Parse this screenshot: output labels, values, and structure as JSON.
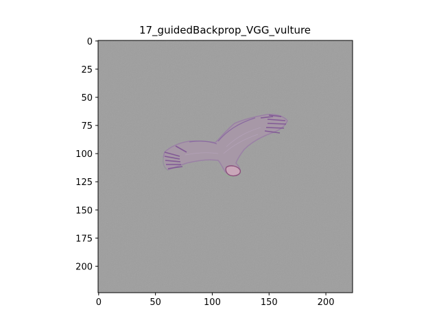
{
  "figure": {
    "title": "17_guidedBackprop_VGG_vulture"
  },
  "image": {
    "subject": "vulture-silhouette",
    "background_color": "#9e9e9e",
    "tint_color": "#b898b8",
    "edge_color": "#8a5a9a"
  },
  "axes": {
    "x_ticks": [
      0,
      50,
      100,
      150,
      200
    ],
    "y_ticks": [
      0,
      25,
      50,
      75,
      100,
      125,
      150,
      175,
      200
    ],
    "x_range": [
      -0.5,
      223.5
    ],
    "y_range": [
      -0.5,
      223.5
    ],
    "grid": false
  }
}
